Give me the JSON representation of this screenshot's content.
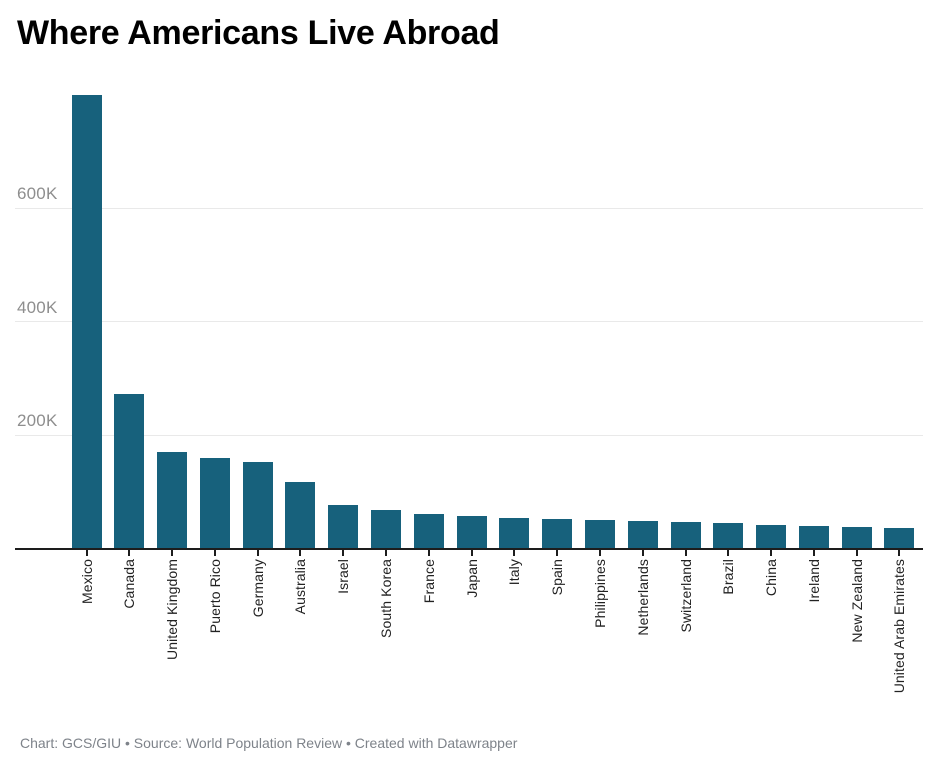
{
  "page": {
    "title": "Where Americans Live Abroad",
    "footer": "Chart: GCS/GIU • Source: World Population Review • Created with Datawrapper"
  },
  "colors": {
    "background": "#ffffff",
    "bar": "#17617c",
    "gridline": "#e9e9e9",
    "axis": "#1d1d1d",
    "title": "#000000",
    "ytick_label": "#8e8e8e",
    "xtick_label": "#222222",
    "footer_text": "#7e838a"
  },
  "chart_data": {
    "type": "bar",
    "title": "Where Americans Live Abroad",
    "categories": [
      "Mexico",
      "Canada",
      "United Kingdom",
      "Puerto Rico",
      "Germany",
      "Australia",
      "Israel",
      "South Korea",
      "France",
      "Japan",
      "Italy",
      "Spain",
      "Philippines",
      "Netherlands",
      "Switzerland",
      "Brazil",
      "China",
      "Ireland",
      "New Zealand",
      "United Arab Emirates"
    ],
    "values": [
      799000,
      273000,
      170000,
      159000,
      152000,
      117000,
      76000,
      68000,
      61000,
      57000,
      54000,
      52000,
      50000,
      48000,
      46000,
      45000,
      42000,
      40000,
      38000,
      36000
    ],
    "xlabel": "",
    "ylabel": "",
    "ylim": [
      0,
      848000
    ],
    "yticks": [
      {
        "value": 200000,
        "label": "200K"
      },
      {
        "value": 400000,
        "label": "400K"
      },
      {
        "value": 600000,
        "label": "600K"
      }
    ],
    "grid": "horizontal",
    "legend": "none",
    "bar_color": "#17617c",
    "footer": "Chart: GCS/GIU • Source: World Population Review • Created with Datawrapper"
  }
}
